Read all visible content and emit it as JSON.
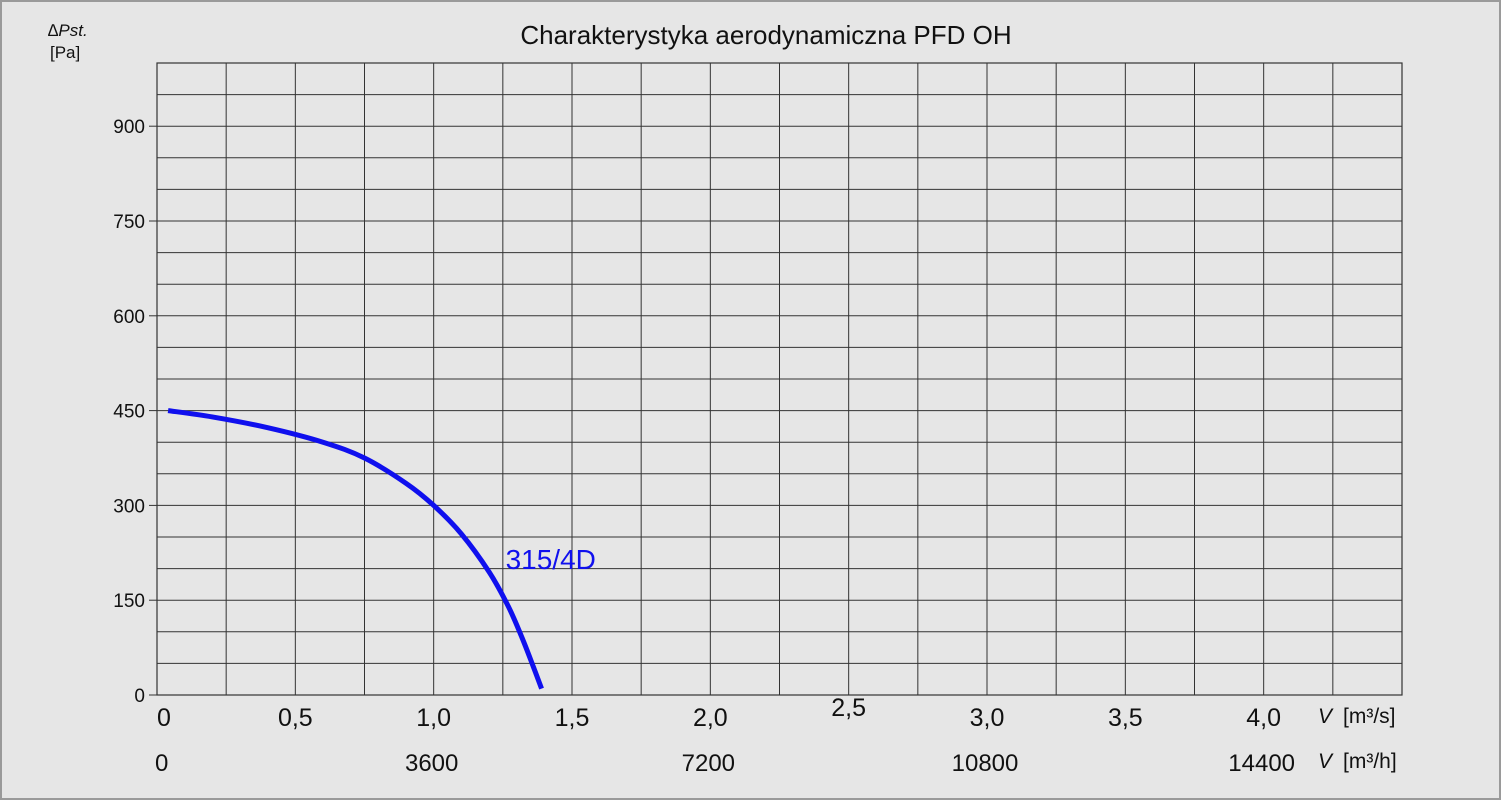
{
  "chart_data": {
    "type": "line",
    "title": "Charakterystyka aerodynamiczna PFD OH",
    "ylabel_symbol": "∆Pst.",
    "ylabel_unit": "[Pa]",
    "yticks": [
      "0",
      "150",
      "300",
      "450",
      "600",
      "750",
      "900"
    ],
    "ytick_values": [
      0,
      150,
      300,
      450,
      600,
      750,
      900
    ],
    "ylim": [
      0,
      1000
    ],
    "xlim": [
      0,
      4.5
    ],
    "x_primary_unit": "m³/s",
    "x_primary_symbol": "V",
    "x_primary_unit_label": "[m³/s]",
    "xticks_primary": [
      "0",
      "0,5",
      "1,0",
      "1,5",
      "2,0",
      "2,5",
      "3,0",
      "3,5",
      "4,0"
    ],
    "xtick_primary_values": [
      0,
      0.5,
      1.0,
      1.5,
      2.0,
      2.5,
      3.0,
      3.5,
      4.0
    ],
    "x_secondary_unit": "m³/h",
    "x_secondary_symbol": "V",
    "x_secondary_unit_label": "[m³/h]",
    "xticks_secondary": [
      "0",
      "3600",
      "7200",
      "10800",
      "14400"
    ],
    "xtick_secondary_values": [
      0,
      1.0,
      2.0,
      3.0,
      4.0
    ],
    "grid": true,
    "series": [
      {
        "name": "315/4D",
        "color": "#1010ee",
        "x": [
          0.04,
          0.2,
          0.4,
          0.6,
          0.75,
          0.9,
          1.0,
          1.1,
          1.2,
          1.27,
          1.32,
          1.36,
          1.39
        ],
        "y": [
          450,
          440,
          423,
          400,
          375,
          335,
          300,
          255,
          195,
          140,
          90,
          45,
          10
        ]
      }
    ]
  }
}
